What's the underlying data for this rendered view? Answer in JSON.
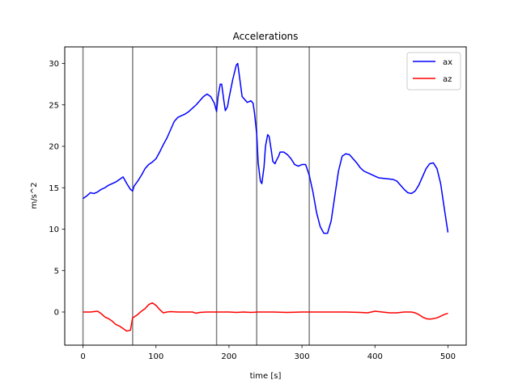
{
  "chart_data": {
    "type": "line",
    "title": "Accelerations",
    "xlabel": "time [s]",
    "ylabel": "m/s^2",
    "xlim": [
      -25,
      525
    ],
    "ylim": [
      -4,
      32
    ],
    "xticks": [
      0,
      100,
      200,
      300,
      400,
      500
    ],
    "yticks": [
      0,
      5,
      10,
      15,
      20,
      25,
      30
    ],
    "legend": "top-right",
    "grid": false,
    "vlines": [
      0,
      68,
      183,
      238,
      310
    ],
    "vline_color": "#7f7f7f",
    "series": [
      {
        "name": "ax",
        "color": "#0000ff",
        "x": [
          0,
          5,
          10,
          15,
          20,
          25,
          30,
          35,
          40,
          45,
          50,
          55,
          60,
          65,
          68,
          70,
          75,
          80,
          85,
          90,
          95,
          100,
          105,
          110,
          115,
          120,
          125,
          130,
          135,
          140,
          145,
          150,
          155,
          160,
          165,
          170,
          175,
          180,
          183,
          185,
          188,
          190,
          193,
          195,
          198,
          200,
          205,
          210,
          212,
          215,
          218,
          220,
          225,
          230,
          233,
          235,
          238,
          240,
          243,
          245,
          248,
          250,
          253,
          255,
          258,
          260,
          263,
          265,
          268,
          270,
          275,
          280,
          285,
          290,
          295,
          300,
          305,
          310,
          315,
          320,
          325,
          330,
          335,
          340,
          345,
          350,
          355,
          360,
          365,
          370,
          375,
          380,
          385,
          390,
          395,
          400,
          405,
          410,
          415,
          420,
          425,
          430,
          435,
          440,
          445,
          450,
          455,
          460,
          465,
          470,
          475,
          480,
          485,
          490,
          495,
          500
        ],
        "y": [
          13.7,
          14.0,
          14.4,
          14.3,
          14.5,
          14.8,
          15.0,
          15.3,
          15.5,
          15.7,
          16.0,
          16.3,
          15.5,
          14.8,
          14.6,
          15.2,
          15.8,
          16.5,
          17.3,
          17.8,
          18.1,
          18.5,
          19.3,
          20.2,
          21.0,
          22.0,
          23.0,
          23.5,
          23.7,
          23.9,
          24.2,
          24.6,
          25.0,
          25.5,
          26.0,
          26.3,
          26.0,
          25.2,
          24.2,
          26.0,
          27.5,
          27.5,
          25.5,
          24.3,
          24.8,
          25.8,
          28.0,
          29.8,
          30.0,
          28.0,
          26.0,
          25.8,
          25.3,
          25.5,
          25.2,
          24.0,
          21.5,
          18.0,
          15.8,
          15.5,
          17.5,
          20.0,
          21.4,
          21.2,
          19.5,
          18.2,
          17.9,
          18.3,
          18.8,
          19.3,
          19.3,
          19.0,
          18.5,
          17.8,
          17.6,
          17.8,
          17.8,
          16.5,
          14.5,
          12.0,
          10.3,
          9.5,
          9.5,
          11.0,
          14.0,
          17.0,
          18.8,
          19.1,
          19.0,
          18.5,
          18.0,
          17.4,
          17.0,
          16.8,
          16.6,
          16.4,
          16.2,
          16.15,
          16.1,
          16.05,
          16.0,
          15.8,
          15.3,
          14.8,
          14.4,
          14.3,
          14.6,
          15.3,
          16.3,
          17.3,
          17.9,
          18.0,
          17.3,
          15.5,
          12.5,
          9.6
        ]
      },
      {
        "name": "az",
        "color": "#ff0000",
        "x": [
          0,
          5,
          10,
          15,
          20,
          25,
          30,
          35,
          40,
          45,
          50,
          55,
          60,
          65,
          68,
          70,
          75,
          80,
          85,
          90,
          95,
          100,
          105,
          110,
          115,
          120,
          130,
          140,
          150,
          155,
          160,
          170,
          180,
          190,
          200,
          210,
          220,
          230,
          240,
          260,
          280,
          300,
          320,
          340,
          360,
          380,
          390,
          400,
          410,
          420,
          430,
          440,
          450,
          455,
          460,
          465,
          470,
          475,
          480,
          485,
          490,
          495,
          500
        ],
        "y": [
          0.0,
          0.0,
          0.0,
          0.05,
          0.1,
          -0.2,
          -0.6,
          -0.8,
          -1.1,
          -1.5,
          -1.7,
          -2.0,
          -2.3,
          -2.2,
          -0.7,
          -0.6,
          -0.3,
          0.1,
          0.4,
          0.9,
          1.1,
          0.8,
          0.3,
          -0.1,
          0.0,
          0.05,
          0.0,
          0.0,
          0.0,
          -0.15,
          -0.05,
          0.0,
          0.0,
          0.0,
          0.0,
          -0.05,
          0.0,
          -0.05,
          0.0,
          0.0,
          -0.05,
          0.0,
          0.0,
          0.0,
          0.0,
          -0.05,
          -0.1,
          0.1,
          0.0,
          -0.1,
          -0.1,
          0.0,
          0.0,
          -0.1,
          -0.3,
          -0.6,
          -0.8,
          -0.85,
          -0.8,
          -0.7,
          -0.5,
          -0.3,
          -0.15
        ]
      }
    ]
  }
}
